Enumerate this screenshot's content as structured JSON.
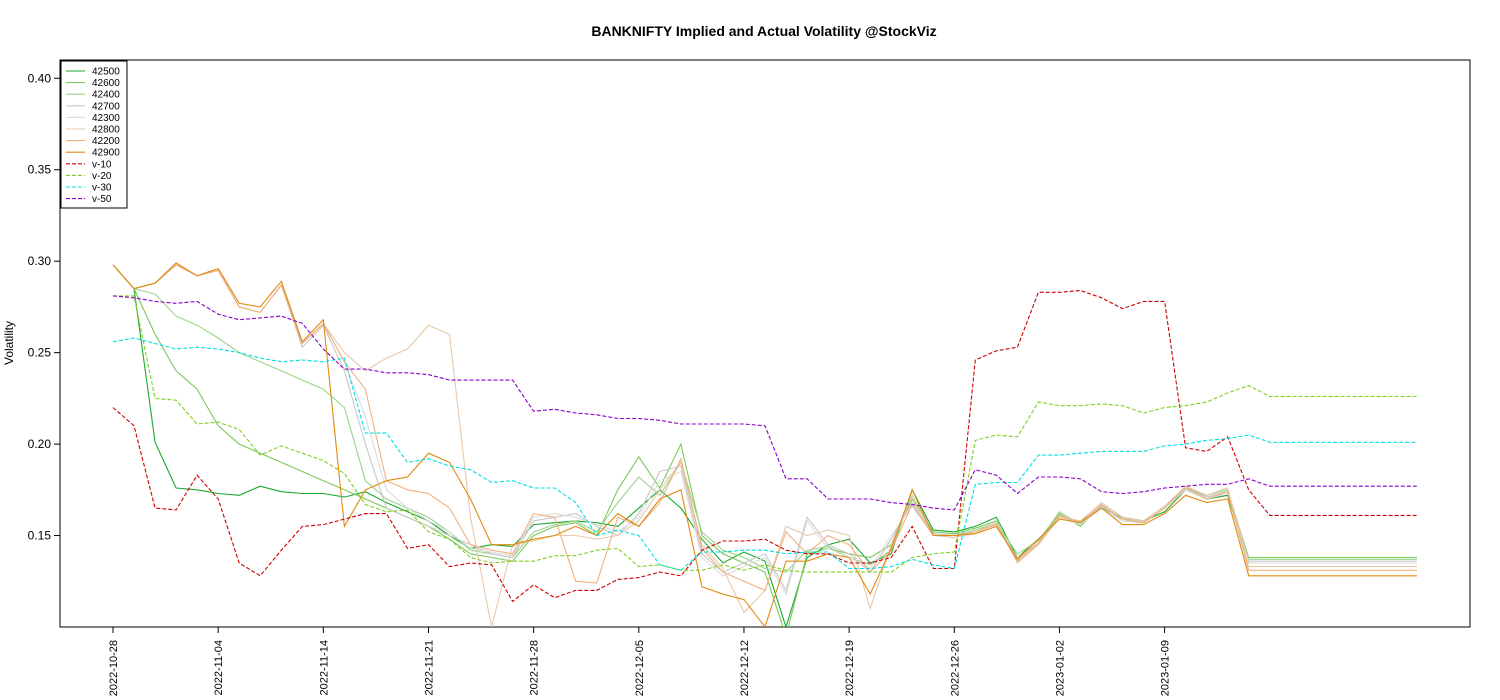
{
  "chart_data": {
    "type": "line",
    "title": "BANKNIFTY Implied and Actual Volatility @StockViz",
    "ylabel": "Volatility",
    "xlabel": "",
    "ylim": [
      0.1,
      0.41
    ],
    "yticks": [
      0.15,
      0.2,
      0.25,
      0.3,
      0.35,
      0.4
    ],
    "ytick_labels": [
      "0.15",
      "0.20",
      "0.25",
      "0.30",
      "0.35",
      "0.40"
    ],
    "x_dates": [
      "2022-10-28",
      "2022-10-31",
      "2022-11-01",
      "2022-11-02",
      "2022-11-03",
      "2022-11-04",
      "2022-11-07",
      "2022-11-09",
      "2022-11-10",
      "2022-11-11",
      "2022-11-14",
      "2022-11-15",
      "2022-11-16",
      "2022-11-17",
      "2022-11-18",
      "2022-11-21",
      "2022-11-22",
      "2022-11-23",
      "2022-11-24",
      "2022-11-25",
      "2022-11-28",
      "2022-11-29",
      "2022-11-30",
      "2022-12-01",
      "2022-12-02",
      "2022-12-05",
      "2022-12-06",
      "2022-12-07",
      "2022-12-08",
      "2022-12-09",
      "2022-12-12",
      "2022-12-13",
      "2022-12-14",
      "2022-12-15",
      "2022-12-16",
      "2022-12-19",
      "2022-12-20",
      "2022-12-21",
      "2022-12-22",
      "2022-12-23",
      "2022-12-26",
      "2022-12-27",
      "2022-12-28",
      "2022-12-29",
      "2022-12-30",
      "2023-01-02",
      "2023-01-03",
      "2023-01-04",
      "2023-01-05",
      "2023-01-06",
      "2023-01-09",
      "2023-01-10",
      "2023-01-11",
      "2023-01-12",
      "2023-01-13",
      "2023-01-16",
      "2023-01-17",
      "2023-01-18",
      "2023-01-19",
      "2023-01-20",
      "2023-01-23",
      "2023-01-24",
      "2023-01-25"
    ],
    "xtick_labels": [
      "2022-10-28",
      "2022-11-04",
      "2022-11-14",
      "2022-11-21",
      "2022-11-28",
      "2022-12-05",
      "2022-12-12",
      "2022-12-19",
      "2022-12-26",
      "2023-01-02",
      "2023-01-09"
    ],
    "xtick_index": [
      0,
      5,
      10,
      15,
      20,
      25,
      30,
      35,
      40,
      45,
      50
    ],
    "legend_position": "top-left",
    "series": [
      {
        "name": "42500",
        "color": "#1aa832",
        "dash": "",
        "values": [
          0.298,
          0.285,
          0.201,
          0.176,
          0.175,
          0.173,
          0.172,
          0.177,
          0.174,
          0.173,
          0.173,
          0.171,
          0.174,
          0.168,
          0.163,
          0.158,
          0.15,
          0.143,
          0.145,
          0.144,
          0.156,
          0.157,
          0.158,
          0.157,
          0.155,
          0.165,
          0.175,
          0.165,
          0.148,
          0.135,
          0.141,
          0.136,
          0.1,
          0.138,
          0.145,
          0.148,
          0.135,
          0.14,
          0.175,
          0.153,
          0.152,
          0.155,
          0.16,
          0.138,
          0.148,
          0.16,
          0.158,
          0.165,
          0.16,
          0.158,
          0.163,
          0.175,
          0.17,
          0.172,
          0.135,
          0.135,
          0.135,
          0.135,
          0.135,
          0.135,
          0.135,
          0.135,
          0.135
        ]
      },
      {
        "name": "42600",
        "color": "#7dc85a",
        "dash": "",
        "values": [
          0.298,
          0.285,
          0.26,
          0.24,
          0.23,
          0.21,
          0.2,
          0.195,
          0.19,
          0.185,
          0.18,
          0.175,
          0.17,
          0.165,
          0.16,
          0.155,
          0.148,
          0.14,
          0.138,
          0.136,
          0.15,
          0.155,
          0.157,
          0.15,
          0.175,
          0.193,
          0.176,
          0.2,
          0.15,
          0.14,
          0.135,
          0.13,
          0.095,
          0.14,
          0.143,
          0.14,
          0.138,
          0.145,
          0.17,
          0.152,
          0.151,
          0.154,
          0.158,
          0.136,
          0.146,
          0.162,
          0.155,
          0.167,
          0.158,
          0.157,
          0.165,
          0.177,
          0.171,
          0.174,
          0.138,
          0.138,
          0.138,
          0.138,
          0.138,
          0.138,
          0.138,
          0.138,
          0.138
        ]
      },
      {
        "name": "42400",
        "color": "#9ad48a",
        "dash": "",
        "values": [
          0.298,
          0.285,
          0.282,
          0.27,
          0.265,
          0.258,
          0.25,
          0.245,
          0.24,
          0.235,
          0.23,
          0.22,
          0.18,
          0.17,
          0.165,
          0.16,
          0.152,
          0.142,
          0.14,
          0.138,
          0.152,
          0.156,
          0.158,
          0.152,
          0.168,
          0.182,
          0.172,
          0.19,
          0.152,
          0.142,
          0.138,
          0.132,
          0.13,
          0.142,
          0.144,
          0.138,
          0.134,
          0.142,
          0.172,
          0.151,
          0.15,
          0.153,
          0.157,
          0.14,
          0.147,
          0.163,
          0.156,
          0.166,
          0.159,
          0.158,
          0.166,
          0.176,
          0.172,
          0.175,
          0.137,
          0.137,
          0.137,
          0.137,
          0.137,
          0.137,
          0.137,
          0.137,
          0.137
        ]
      },
      {
        "name": "42700",
        "color": "#c8c8c8",
        "dash": "",
        "values": [
          0.298,
          0.285,
          0.288,
          0.298,
          0.292,
          0.295,
          0.275,
          0.272,
          0.287,
          0.253,
          0.265,
          0.24,
          0.2,
          0.165,
          0.16,
          0.155,
          0.15,
          0.145,
          0.14,
          0.138,
          0.158,
          0.16,
          0.162,
          0.155,
          0.15,
          0.162,
          0.185,
          0.188,
          0.14,
          0.13,
          0.135,
          0.14,
          0.12,
          0.16,
          0.145,
          0.14,
          0.13,
          0.148,
          0.168,
          0.151,
          0.15,
          0.152,
          0.156,
          0.138,
          0.146,
          0.161,
          0.157,
          0.166,
          0.159,
          0.158,
          0.166,
          0.176,
          0.171,
          0.174,
          0.136,
          0.136,
          0.136,
          0.136,
          0.136,
          0.136,
          0.136,
          0.136,
          0.136
        ]
      },
      {
        "name": "42300",
        "color": "#dcdcdc",
        "dash": "",
        "values": [
          0.298,
          0.285,
          0.288,
          0.298,
          0.292,
          0.295,
          0.275,
          0.272,
          0.287,
          0.255,
          0.266,
          0.245,
          0.215,
          0.175,
          0.165,
          0.158,
          0.152,
          0.143,
          0.141,
          0.139,
          0.16,
          0.162,
          0.16,
          0.156,
          0.152,
          0.16,
          0.18,
          0.185,
          0.138,
          0.128,
          0.133,
          0.138,
          0.118,
          0.158,
          0.143,
          0.138,
          0.132,
          0.15,
          0.166,
          0.15,
          0.149,
          0.151,
          0.155,
          0.137,
          0.145,
          0.16,
          0.156,
          0.165,
          0.158,
          0.157,
          0.165,
          0.175,
          0.17,
          0.173,
          0.135,
          0.135,
          0.135,
          0.135,
          0.135,
          0.135,
          0.135,
          0.135,
          0.135
        ]
      },
      {
        "name": "42800",
        "color": "#e8c8a8",
        "dash": "",
        "values": [
          0.298,
          0.285,
          0.288,
          0.298,
          0.292,
          0.295,
          0.275,
          0.272,
          0.287,
          0.255,
          0.266,
          0.25,
          0.24,
          0.247,
          0.252,
          0.265,
          0.26,
          0.16,
          0.1,
          0.145,
          0.147,
          0.15,
          0.15,
          0.148,
          0.15,
          0.158,
          0.175,
          0.19,
          0.145,
          0.132,
          0.108,
          0.12,
          0.155,
          0.15,
          0.153,
          0.15,
          0.11,
          0.145,
          0.172,
          0.15,
          0.149,
          0.152,
          0.157,
          0.135,
          0.145,
          0.16,
          0.158,
          0.168,
          0.16,
          0.158,
          0.166,
          0.177,
          0.172,
          0.176,
          0.133,
          0.133,
          0.133,
          0.133,
          0.133,
          0.133,
          0.133,
          0.133,
          0.133
        ]
      },
      {
        "name": "42200",
        "color": "#f0b080",
        "dash": "",
        "values": [
          0.298,
          0.285,
          0.288,
          0.298,
          0.292,
          0.295,
          0.275,
          0.272,
          0.287,
          0.255,
          0.266,
          0.245,
          0.23,
          0.18,
          0.175,
          0.173,
          0.165,
          0.145,
          0.142,
          0.14,
          0.162,
          0.16,
          0.125,
          0.124,
          0.16,
          0.155,
          0.168,
          0.192,
          0.143,
          0.13,
          0.125,
          0.12,
          0.152,
          0.14,
          0.15,
          0.145,
          0.13,
          0.142,
          0.167,
          0.15,
          0.15,
          0.152,
          0.156,
          0.136,
          0.146,
          0.161,
          0.157,
          0.167,
          0.159,
          0.157,
          0.165,
          0.176,
          0.17,
          0.174,
          0.131,
          0.131,
          0.131,
          0.131,
          0.131,
          0.131,
          0.131,
          0.131,
          0.131
        ]
      },
      {
        "name": "42900",
        "color": "#e08a10",
        "dash": "",
        "values": [
          0.298,
          0.285,
          0.288,
          0.299,
          0.292,
          0.296,
          0.277,
          0.275,
          0.289,
          0.256,
          0.268,
          0.155,
          0.175,
          0.18,
          0.182,
          0.195,
          0.19,
          0.17,
          0.145,
          0.145,
          0.148,
          0.15,
          0.155,
          0.15,
          0.162,
          0.155,
          0.17,
          0.175,
          0.122,
          0.118,
          0.115,
          0.1,
          0.136,
          0.136,
          0.14,
          0.138,
          0.118,
          0.143,
          0.175,
          0.15,
          0.15,
          0.151,
          0.155,
          0.137,
          0.148,
          0.159,
          0.157,
          0.165,
          0.156,
          0.156,
          0.162,
          0.172,
          0.168,
          0.17,
          0.128,
          0.128,
          0.128,
          0.128,
          0.128,
          0.128,
          0.128,
          0.128,
          0.128
        ]
      },
      {
        "name": "v-10",
        "color": "#cc0000",
        "dash": "4,2",
        "values": [
          0.22,
          0.21,
          0.165,
          0.164,
          0.183,
          0.17,
          0.135,
          0.128,
          0.142,
          0.155,
          0.156,
          0.159,
          0.162,
          0.162,
          0.143,
          0.145,
          0.133,
          0.135,
          0.134,
          0.114,
          0.123,
          0.116,
          0.12,
          0.12,
          0.126,
          0.127,
          0.13,
          0.128,
          0.142,
          0.147,
          0.147,
          0.148,
          0.142,
          0.14,
          0.14,
          0.135,
          0.135,
          0.138,
          0.155,
          0.132,
          0.132,
          0.246,
          0.251,
          0.253,
          0.283,
          0.283,
          0.284,
          0.28,
          0.274,
          0.278,
          0.278,
          0.198,
          0.196,
          0.204,
          0.175,
          0.161,
          0.161,
          0.161,
          0.161,
          0.161,
          0.161,
          0.161,
          0.161
        ]
      },
      {
        "name": "v-20",
        "color": "#7fd01e",
        "dash": "4,2",
        "values": [
          0.281,
          0.281,
          0.225,
          0.224,
          0.211,
          0.212,
          0.208,
          0.194,
          0.199,
          0.195,
          0.191,
          0.184,
          0.167,
          0.163,
          0.164,
          0.152,
          0.148,
          0.138,
          0.135,
          0.136,
          0.136,
          0.139,
          0.139,
          0.142,
          0.143,
          0.133,
          0.134,
          0.131,
          0.131,
          0.134,
          0.131,
          0.134,
          0.131,
          0.13,
          0.13,
          0.13,
          0.13,
          0.13,
          0.138,
          0.14,
          0.141,
          0.202,
          0.205,
          0.204,
          0.223,
          0.221,
          0.221,
          0.222,
          0.221,
          0.217,
          0.22,
          0.221,
          0.223,
          0.228,
          0.232,
          0.226,
          0.226,
          0.226,
          0.226,
          0.226,
          0.226,
          0.226,
          0.226
        ]
      },
      {
        "name": "v-30",
        "color": "#00e0e0",
        "dash": "4,2",
        "values": [
          0.256,
          0.258,
          0.255,
          0.252,
          0.253,
          0.252,
          0.25,
          0.247,
          0.245,
          0.246,
          0.245,
          0.247,
          0.206,
          0.206,
          0.19,
          0.192,
          0.188,
          0.186,
          0.179,
          0.18,
          0.176,
          0.176,
          0.168,
          0.15,
          0.153,
          0.15,
          0.134,
          0.131,
          0.141,
          0.141,
          0.142,
          0.142,
          0.14,
          0.141,
          0.141,
          0.132,
          0.132,
          0.133,
          0.137,
          0.134,
          0.132,
          0.178,
          0.179,
          0.179,
          0.194,
          0.194,
          0.195,
          0.196,
          0.196,
          0.196,
          0.199,
          0.2,
          0.202,
          0.203,
          0.205,
          0.201,
          0.201,
          0.201,
          0.201,
          0.201,
          0.201,
          0.201,
          0.201
        ]
      },
      {
        "name": "v-50",
        "color": "#8a00cc",
        "dash": "4,2",
        "values": [
          0.281,
          0.28,
          0.278,
          0.277,
          0.278,
          0.271,
          0.268,
          0.269,
          0.27,
          0.266,
          0.252,
          0.241,
          0.241,
          0.239,
          0.239,
          0.238,
          0.235,
          0.235,
          0.235,
          0.235,
          0.218,
          0.219,
          0.217,
          0.216,
          0.214,
          0.214,
          0.213,
          0.211,
          0.211,
          0.211,
          0.211,
          0.21,
          0.181,
          0.181,
          0.17,
          0.17,
          0.17,
          0.168,
          0.167,
          0.165,
          0.164,
          0.186,
          0.183,
          0.173,
          0.182,
          0.182,
          0.181,
          0.174,
          0.173,
          0.174,
          0.176,
          0.177,
          0.178,
          0.178,
          0.181,
          0.177,
          0.177,
          0.177,
          0.177,
          0.177,
          0.177,
          0.177,
          0.177
        ]
      }
    ]
  }
}
